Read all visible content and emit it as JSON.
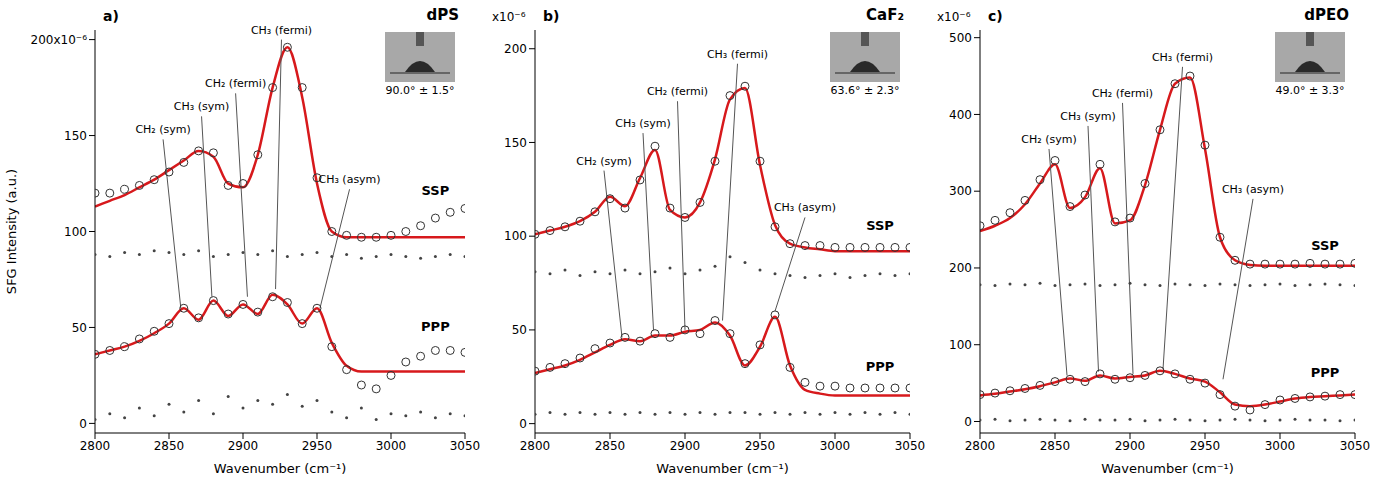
{
  "chart_data": [
    {
      "type": "scatter",
      "panel_label": "a)",
      "title": "dPS",
      "contact_angle": "90.0° ± 1.5°",
      "x_label": "Wavenumber (cm⁻¹)",
      "y_label": "SFG Intensity (a.u.)",
      "xlim": [
        2800,
        3050
      ],
      "xticks": [
        2800,
        2850,
        2900,
        2950,
        3000,
        3050
      ],
      "ylim": [
        -5,
        205
      ],
      "yticks": [
        0,
        50,
        100,
        150,
        {
          "value": 200,
          "label": "200x10⁻⁶"
        }
      ],
      "grid": false,
      "x": [
        2800,
        2810,
        2820,
        2830,
        2840,
        2850,
        2860,
        2870,
        2880,
        2890,
        2900,
        2910,
        2920,
        2930,
        2940,
        2950,
        2960,
        2970,
        2980,
        2990,
        3000,
        3010,
        3020,
        3030,
        3040,
        3050
      ],
      "series": [
        {
          "type": "scatter",
          "marker": "open_circle",
          "color": "#333333",
          "values": [
            120,
            120,
            122,
            124,
            127,
            131,
            136,
            142,
            141,
            124,
            125,
            140,
            175,
            196,
            175,
            128,
            100,
            98,
            97,
            97,
            98,
            100,
            103,
            107,
            110,
            112
          ]
        },
        {
          "type": "line",
          "line_style": "solid",
          "color": "#d7191c",
          "values": [
            113,
            116,
            119,
            123,
            127,
            132,
            137,
            142,
            139,
            125,
            123,
            140,
            175,
            196,
            170,
            125,
            100,
            97,
            97,
            97,
            97,
            97,
            97,
            97,
            97,
            97
          ]
        },
        {
          "type": "scatter",
          "marker": "dot",
          "color": "#444444",
          "values": [
            88,
            87,
            89,
            88,
            90,
            89,
            88,
            90,
            87,
            88,
            89,
            88,
            90,
            87,
            88,
            89,
            87,
            88,
            86,
            87,
            88,
            87,
            86,
            87,
            88,
            87
          ]
        },
        {
          "type": "scatter",
          "marker": "open_circle",
          "color": "#333333",
          "values": [
            36,
            38,
            40,
            44,
            48,
            52,
            60,
            55,
            64,
            57,
            62,
            58,
            66,
            63,
            52,
            60,
            40,
            28,
            20,
            18,
            25,
            32,
            35,
            38,
            38,
            37
          ]
        },
        {
          "type": "line",
          "line_style": "solid",
          "color": "#d7191c",
          "values": [
            36,
            38,
            40,
            43,
            47,
            52,
            60,
            54,
            64,
            56,
            62,
            57,
            67,
            62,
            52,
            60,
            42,
            30,
            27,
            27,
            27,
            27,
            27,
            27,
            27,
            27
          ]
        },
        {
          "type": "scatter",
          "marker": "dot",
          "color": "#444444",
          "values": [
            2,
            5,
            3,
            8,
            4,
            10,
            6,
            12,
            5,
            14,
            8,
            12,
            10,
            15,
            9,
            12,
            6,
            3,
            8,
            2,
            5,
            4,
            6,
            3,
            5,
            4
          ]
        }
      ],
      "annotations": [
        {
          "text": "SSP",
          "x": 3030,
          "y": 116
        },
        {
          "text": "PPP",
          "x": 3030,
          "y": 45
        }
      ],
      "peaks": [
        {
          "text": "CH₂ (sym)",
          "x": 2846,
          "y": 148,
          "x_end": 2858,
          "y_end": 60
        },
        {
          "text": "CH₃ (sym)",
          "x": 2872,
          "y": 160,
          "x_end": 2879,
          "y_end": 66
        },
        {
          "text": "CH₂ (fermi)",
          "x": 2895,
          "y": 172,
          "x_end": 2903,
          "y_end": 66
        },
        {
          "text": "CH₃ (fermi)",
          "x": 2926,
          "y": 200,
          "x_end": 2922,
          "y_end": 70
        },
        {
          "text": "CH₃ (asym)",
          "x": 2972,
          "y": 122,
          "x_end": 2952,
          "y_end": 60
        }
      ]
    },
    {
      "type": "scatter",
      "panel_label": "b)",
      "title": "CaF₂",
      "contact_angle": "63.6° ± 2.3°",
      "x_label": "Wavenumber (cm⁻¹)",
      "scale_label": "x10⁻⁶",
      "xlim": [
        2800,
        3050
      ],
      "xticks": [
        2800,
        2850,
        2900,
        2950,
        3000,
        3050
      ],
      "ylim": [
        -5,
        210
      ],
      "yticks": [
        0,
        50,
        100,
        150,
        200
      ],
      "grid": false,
      "x": [
        2800,
        2810,
        2820,
        2830,
        2840,
        2850,
        2860,
        2870,
        2880,
        2890,
        2900,
        2910,
        2920,
        2930,
        2940,
        2950,
        2960,
        2970,
        2980,
        2990,
        3000,
        3010,
        3020,
        3030,
        3040,
        3050
      ],
      "series": [
        {
          "type": "scatter",
          "marker": "open_circle",
          "color": "#333333",
          "values": [
            101,
            103,
            105,
            108,
            113,
            120,
            115,
            130,
            148,
            115,
            110,
            118,
            140,
            175,
            180,
            140,
            105,
            96,
            95,
            95,
            94,
            94,
            94,
            94,
            94,
            94
          ]
        },
        {
          "type": "line",
          "line_style": "solid",
          "color": "#d7191c",
          "values": [
            101,
            103,
            105,
            108,
            113,
            121,
            116,
            131,
            146,
            114,
            110,
            118,
            141,
            173,
            179,
            138,
            106,
            96,
            94,
            93,
            92,
            92,
            92,
            92,
            92,
            92
          ]
        },
        {
          "type": "scatter",
          "marker": "dot",
          "color": "#444444",
          "values": [
            81,
            80,
            82,
            79,
            81,
            80,
            82,
            80,
            81,
            83,
            80,
            82,
            84,
            89,
            86,
            82,
            80,
            79,
            78,
            79,
            80,
            78,
            79,
            80,
            79,
            80
          ]
        },
        {
          "type": "scatter",
          "marker": "open_circle",
          "color": "#333333",
          "values": [
            28,
            30,
            32,
            35,
            40,
            43,
            46,
            44,
            48,
            46,
            50,
            48,
            55,
            48,
            32,
            42,
            58,
            30,
            22,
            20,
            20,
            19,
            19,
            19,
            19,
            19
          ]
        },
        {
          "type": "line",
          "line_style": "solid",
          "color": "#d7191c",
          "values": [
            27,
            29,
            31,
            34,
            38,
            42,
            45,
            44,
            47,
            47,
            49,
            50,
            54,
            47,
            31,
            41,
            57,
            31,
            18,
            16,
            15,
            15,
            15,
            15,
            15,
            15
          ]
        },
        {
          "type": "scatter",
          "marker": "dot",
          "color": "#444444",
          "values": [
            5,
            6,
            5,
            6,
            5,
            6,
            5,
            6,
            5,
            6,
            5,
            6,
            5,
            6,
            6,
            5,
            6,
            5,
            6,
            5,
            6,
            5,
            6,
            5,
            6,
            5
          ]
        }
      ],
      "annotations": [
        {
          "text": "SSP",
          "x": 3030,
          "y": 100
        },
        {
          "text": "PPP",
          "x": 3030,
          "y": 25
        }
      ],
      "peaks": [
        {
          "text": "CH₂ (sym)",
          "x": 2846,
          "y": 135,
          "x_end": 2858,
          "y_end": 46
        },
        {
          "text": "CH₃ (sym)",
          "x": 2872,
          "y": 155,
          "x_end": 2879,
          "y_end": 50
        },
        {
          "text": "CH₂ (fermi)",
          "x": 2895,
          "y": 172,
          "x_end": 2900,
          "y_end": 50
        },
        {
          "text": "CH₃ (fermi)",
          "x": 2935,
          "y": 192,
          "x_end": 2925,
          "y_end": 55
        },
        {
          "text": "CH₃ (asym)",
          "x": 2980,
          "y": 110,
          "x_end": 2960,
          "y_end": 60
        }
      ]
    },
    {
      "type": "scatter",
      "panel_label": "c)",
      "title": "dPEO",
      "contact_angle": "49.0° ± 3.3°",
      "x_label": "Wavenumber (cm⁻¹)",
      "scale_label": "x10⁻⁶",
      "xlim": [
        2800,
        3050
      ],
      "xticks": [
        2800,
        2850,
        2900,
        2950,
        3000,
        3050
      ],
      "ylim": [
        -15,
        510
      ],
      "yticks": [
        0,
        100,
        200,
        300,
        400,
        500
      ],
      "grid": false,
      "x": [
        2800,
        2810,
        2820,
        2830,
        2840,
        2850,
        2860,
        2870,
        2880,
        2890,
        2900,
        2910,
        2920,
        2930,
        2940,
        2950,
        2960,
        2970,
        2980,
        2990,
        3000,
        3010,
        3020,
        3030,
        3040,
        3050
      ],
      "series": [
        {
          "type": "scatter",
          "marker": "open_circle",
          "color": "#333333",
          "values": [
            255,
            262,
            272,
            288,
            315,
            340,
            280,
            295,
            335,
            260,
            265,
            310,
            380,
            440,
            450,
            360,
            240,
            210,
            205,
            205,
            205,
            205,
            206,
            205,
            205,
            206
          ]
        },
        {
          "type": "line",
          "line_style": "solid",
          "color": "#d7191c",
          "values": [
            248,
            255,
            265,
            283,
            310,
            335,
            278,
            292,
            330,
            258,
            262,
            308,
            380,
            440,
            448,
            355,
            240,
            210,
            204,
            203,
            203,
            203,
            203,
            203,
            203,
            203
          ]
        },
        {
          "type": "scatter",
          "marker": "dot",
          "color": "#444444",
          "values": [
            178,
            177,
            179,
            178,
            180,
            177,
            178,
            179,
            177,
            178,
            180,
            178,
            177,
            179,
            178,
            177,
            179,
            178,
            177,
            178,
            179,
            177,
            178,
            179,
            178,
            177
          ]
        },
        {
          "type": "scatter",
          "marker": "open_circle",
          "color": "#333333",
          "values": [
            35,
            37,
            40,
            43,
            47,
            52,
            55,
            52,
            62,
            55,
            57,
            60,
            66,
            62,
            55,
            50,
            35,
            20,
            15,
            22,
            28,
            30,
            32,
            33,
            35,
            35
          ]
        },
        {
          "type": "line",
          "line_style": "solid",
          "color": "#d7191c",
          "values": [
            34,
            36,
            39,
            42,
            46,
            51,
            56,
            53,
            60,
            56,
            58,
            60,
            66,
            62,
            56,
            52,
            38,
            22,
            20,
            22,
            26,
            30,
            32,
            33,
            34,
            35
          ]
        },
        {
          "type": "scatter",
          "marker": "dot",
          "color": "#444444",
          "values": [
            2,
            3,
            1,
            2,
            3,
            2,
            1,
            3,
            2,
            2,
            3,
            1,
            2,
            3,
            2,
            1,
            2,
            3,
            2,
            1,
            2,
            3,
            2,
            2,
            1,
            2
          ]
        }
      ],
      "annotations": [
        {
          "text": "SSP",
          "x": 3030,
          "y": 215
        },
        {
          "text": "PPP",
          "x": 3030,
          "y": 50
        }
      ],
      "peaks": [
        {
          "text": "CH₂ (sym)",
          "x": 2846,
          "y": 355,
          "x_end": 2858,
          "y_end": 60
        },
        {
          "text": "CH₃ (sym)",
          "x": 2872,
          "y": 385,
          "x_end": 2879,
          "y_end": 65
        },
        {
          "text": "CH₂ (fermi)",
          "x": 2895,
          "y": 415,
          "x_end": 2902,
          "y_end": 62
        },
        {
          "text": "CH₃ (fermi)",
          "x": 2935,
          "y": 462,
          "x_end": 2922,
          "y_end": 68
        },
        {
          "text": "CH₃ (asym)",
          "x": 2982,
          "y": 290,
          "x_end": 2962,
          "y_end": 55
        }
      ]
    }
  ]
}
